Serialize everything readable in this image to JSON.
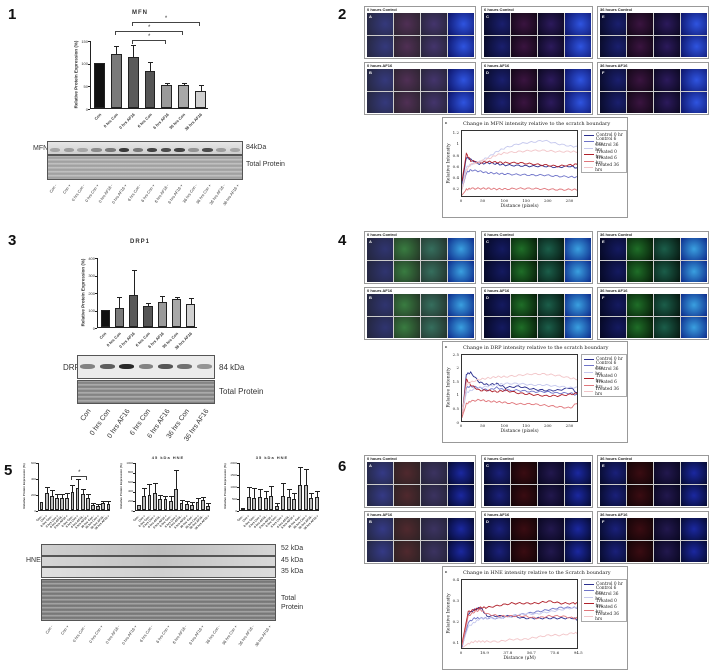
{
  "panels": {
    "p1": {
      "num": "1"
    },
    "p2": {
      "num": "2"
    },
    "p3": {
      "num": "3"
    },
    "p4": {
      "num": "4"
    },
    "p5": {
      "num": "5"
    },
    "p6": {
      "num": "6"
    }
  },
  "mfn_blot": {
    "label": "MFN",
    "kda": "84kDa",
    "total": "Total Protein",
    "lanes": [
      "Con -",
      "Con +",
      "0 hrs Con -",
      "0 hrs Con +",
      "0 hrs AF16 -",
      "0 hrs AF16 +",
      "6 hrs Con -",
      "6 hrs Con +",
      "6 hrs AF16 -",
      "6 hrs AF16 +",
      "36 hrs Con -",
      "36 hrs Con +",
      "36 hrs AF16 -",
      "36 hrs AF16 +"
    ]
  },
  "drp_blot": {
    "label": "DRP",
    "kda": "84 kDa",
    "total": "Total Protein",
    "lanes": [
      "Con",
      "0 hrs Con",
      "0 hrs AF16",
      "6 hrs Con",
      "6 hrs AF16",
      "36 hrs Con",
      "36 hrs AF16"
    ]
  },
  "hne_blot": {
    "label": "HNE",
    "kda": [
      "52 kDa",
      "45 kDa",
      "35 kDa"
    ],
    "total_line1": "Total",
    "total_line2": "Protein",
    "lanes": [
      "Con -",
      "Con +",
      "0 hrs Con -",
      "0 hrs Con +",
      "0 hrs AF16 -",
      "0 hrs AF16 +",
      "6 hrs Con -",
      "6 hrs Con +",
      "6 hrs AF16 -",
      "6 hrs AF16 +",
      "36 hrs Con -",
      "36 hrs Con +",
      "36 hrs AF16 -",
      "36 hrs AF16 +"
    ]
  },
  "image_panels": {
    "p2": [
      "0 hours Control",
      "6 hours Control",
      "36 hours Control",
      "0 hours AF16",
      "6 hours AF16",
      "36 hours AF16"
    ],
    "p4": [
      "0 hours Control",
      "6 hours Control",
      "36 hours Control",
      "0 hours AF16",
      "6 hours AF16",
      "36 hours AF16"
    ],
    "p6": [
      "0 hours Control",
      "6 hours Control",
      "36 hours Control",
      "0 hours AF16",
      "6 hours AF16",
      "36 hours AF16"
    ],
    "letters": [
      "A",
      "C",
      "E",
      "B",
      "D",
      "F"
    ]
  },
  "legend": [
    "Control 0 hr",
    "Control 6 hrs",
    "Control 36 hrs",
    "Treated 0 hrs",
    "Treated 6 hrs",
    "Treated 36 hrs"
  ],
  "legend_colors": [
    "#2b2f8f",
    "#6f74c9",
    "#c6c9ee",
    "#b0202a",
    "#e0777c",
    "#f2c5c8"
  ],
  "chart_data": [
    {
      "type": "bar",
      "title": "MFN",
      "ylabel": "Relative Protein Expression (%)",
      "xlabel": "",
      "ylim": [
        0,
        150
      ],
      "yticks": [
        0,
        50,
        100,
        150
      ],
      "categories": [
        "Con",
        "0 hrs Con",
        "0 hrs AF16",
        "6 hrs Con",
        "6 hrs AF16",
        "36 hrs Con",
        "36 hrs AF16"
      ],
      "values": [
        100,
        120,
        113,
        82,
        50,
        50,
        38
      ],
      "errors": [
        0,
        14,
        23,
        18,
        3,
        4,
        11
      ],
      "colors": [
        "#111111",
        "#7a7a7a",
        "#5a5a5a",
        "#555555",
        "#9a9a9a",
        "#a8a8a8",
        "#d0d0d0"
      ],
      "significance": [
        {
          "from": 2,
          "to": 4,
          "label": "*"
        },
        {
          "from": 1,
          "to": 5,
          "label": "*"
        },
        {
          "from": 2,
          "to": 6,
          "label": "*"
        }
      ]
    },
    {
      "type": "bar",
      "title": "DRP1",
      "ylabel": "Relative Protein Expression (%)",
      "xlabel": "",
      "ylim": [
        0,
        400
      ],
      "yticks": [
        0,
        100,
        200,
        300,
        400
      ],
      "categories": [
        "Con",
        "0 hrs Con",
        "0 hrs AF16",
        "6 hrs Con",
        "6 hrs AF16",
        "36 hrs Con",
        "36 hrs AF16"
      ],
      "values": [
        100,
        110,
        185,
        120,
        142,
        160,
        133
      ],
      "errors": [
        0,
        55,
        135,
        10,
        30,
        3,
        25
      ],
      "colors": [
        "#111111",
        "#7a7a7a",
        "#5a5a5a",
        "#555555",
        "#9a9a9a",
        "#a8a8a8",
        "#d0d0d0"
      ]
    },
    {
      "type": "bar",
      "title": "",
      "ylabel": "Relative Protein Expression (%)",
      "ylim": [
        0,
        600
      ],
      "yticks": [
        0,
        200,
        400,
        600
      ],
      "categories": [
        "Con -",
        "Con +",
        "0 hrs Con -",
        "0 hrs Con +",
        "0 hrs AF16 -",
        "0 hrs AF16 +",
        "6 hrs Con -",
        "6 hrs Con +",
        "6 hrs AF16 -",
        "6 hrs AF16 +",
        "36 hrs Con -",
        "36 hrs Con +",
        "36 hrs AF16 -",
        "36 hrs AF16 +"
      ],
      "values": [
        100,
        210,
        175,
        150,
        150,
        155,
        225,
        270,
        200,
        150,
        60,
        55,
        85,
        80
      ],
      "errors": [
        0,
        60,
        60,
        40,
        40,
        40,
        80,
        100,
        50,
        40,
        10,
        10,
        20,
        15
      ],
      "significance": [
        {
          "from": 6,
          "to": 9,
          "label": "*"
        }
      ]
    },
    {
      "type": "bar",
      "title": "45 kDa HNE",
      "ylabel": "Relative Protein Expression (%)",
      "ylim": [
        0,
        1000
      ],
      "yticks": [
        0,
        200,
        400,
        600,
        800,
        1000
      ],
      "categories": [
        "Con -",
        "Con +",
        "0 hrs Con -",
        "0 hrs Con +",
        "0 hrs AF16 -",
        "0 hrs AF16 +",
        "6 hrs Con -",
        "6 hrs Con +",
        "6 hrs AF16 -",
        "6 hrs AF16 +",
        "36 hrs Con -",
        "36 hrs Con +",
        "36 hrs AF16 -",
        "36 hrs AF16 +"
      ],
      "values": [
        100,
        300,
        320,
        350,
        230,
        220,
        190,
        440,
        150,
        120,
        100,
        160,
        210,
        90
      ],
      "errors": [
        0,
        140,
        210,
        200,
        60,
        60,
        80,
        380,
        40,
        40,
        40,
        60,
        30,
        40
      ]
    },
    {
      "type": "bar",
      "title": "35 kDa HNE",
      "ylabel": "Relative Protein Expression (%)",
      "ylim": [
        0,
        2000
      ],
      "yticks": [
        0,
        500,
        1000,
        1500,
        2000
      ],
      "categories": [
        "Con -",
        "Con +",
        "0 hrs Con -",
        "0 hrs Con +",
        "0 hrs AF16 -",
        "0 hrs AF16 +",
        "6 hrs Con -",
        "6 hrs Con +",
        "6 hrs AF16 -",
        "6 hrs AF16 +",
        "36 hrs Con -",
        "36 hrs Con +",
        "36 hrs AF16 -",
        "36 hrs AF16 +"
      ],
      "values": [
        100,
        560,
        510,
        550,
        500,
        580,
        180,
        590,
        540,
        470,
        1060,
        1060,
        520,
        560
      ],
      "errors": [
        0,
        350,
        350,
        300,
        250,
        380,
        80,
        500,
        280,
        200,
        700,
        600,
        150,
        200
      ]
    },
    {
      "type": "line",
      "title": "Change in MFN intensity relative to the scratch boundary",
      "xlabel": "Distance (pixels)",
      "ylabel": "Relative Intensity",
      "xlim": [
        0,
        270
      ],
      "ylim": [
        0.05,
        1.25
      ],
      "xticks": [
        0,
        50,
        100,
        150,
        200,
        250
      ],
      "yticks": [
        0.2,
        0.4,
        0.6,
        0.8,
        1.0,
        1.2
      ],
      "x": [
        0,
        10,
        20,
        40,
        60,
        80,
        100,
        130,
        160,
        190,
        220,
        250,
        270
      ],
      "series": [
        {
          "name": "Control 0 hr",
          "values": [
            0.3,
            0.78,
            0.74,
            0.66,
            0.68,
            0.66,
            0.64,
            0.63,
            0.62,
            0.62,
            0.6,
            0.62,
            0.58
          ]
        },
        {
          "name": "Control 6 hrs",
          "values": [
            0.2,
            0.5,
            0.55,
            0.53,
            0.5,
            0.49,
            0.48,
            0.47,
            0.46,
            0.46,
            0.44,
            0.43,
            0.42
          ]
        },
        {
          "name": "Control 36 hrs",
          "values": [
            0.25,
            0.6,
            0.65,
            0.7,
            0.78,
            0.88,
            0.95,
            1.02,
            1.05,
            1.08,
            1.02,
            0.98,
            0.96
          ]
        },
        {
          "name": "Treated 0 hrs",
          "values": [
            0.35,
            0.84,
            0.72,
            0.68,
            0.7,
            0.69,
            0.68,
            0.68,
            0.66,
            0.64,
            0.62,
            0.64,
            0.66
          ]
        },
        {
          "name": "Treated 6 hrs",
          "values": [
            0.1,
            0.2,
            0.22,
            0.22,
            0.22,
            0.21,
            0.21,
            0.22,
            0.22,
            0.21,
            0.2,
            0.2,
            0.2
          ]
        },
        {
          "name": "Treated 36 hrs",
          "values": [
            0.2,
            0.55,
            0.65,
            0.7,
            0.75,
            0.82,
            0.86,
            0.88,
            0.9,
            0.9,
            0.88,
            0.88,
            0.88
          ]
        }
      ]
    },
    {
      "type": "line",
      "title": "Change in DRP intensity relative to the scratch boundary",
      "xlabel": "Distance (pixels)",
      "ylabel": "Relative Intensity",
      "xlim": [
        0,
        270
      ],
      "ylim": [
        0,
        2.5
      ],
      "xticks": [
        0,
        50,
        100,
        150,
        200,
        250
      ],
      "yticks": [
        0,
        0.5,
        1,
        1.5,
        2,
        2.5
      ],
      "x": [
        0,
        10,
        20,
        40,
        60,
        80,
        100,
        130,
        160,
        190,
        220,
        250,
        270
      ],
      "series": [
        {
          "name": "Control 0 hr",
          "values": [
            0.2,
            1.8,
            1.85,
            1.5,
            1.4,
            1.45,
            1.3,
            1.35,
            1.25,
            1.2,
            1.2,
            1.3,
            1.05
          ]
        },
        {
          "name": "Control 6 hrs",
          "values": [
            0.3,
            1.3,
            1.35,
            1.3,
            1.2,
            1.3,
            1.2,
            1.2,
            1.15,
            1.15,
            1.1,
            1.1,
            1.0
          ]
        },
        {
          "name": "Control 36 hrs",
          "values": [
            0.3,
            1.1,
            1.2,
            1.3,
            1.35,
            1.4,
            1.45,
            1.45,
            1.4,
            1.4,
            1.35,
            1.3,
            1.3
          ]
        },
        {
          "name": "Treated 0 hrs",
          "values": [
            0.2,
            1.6,
            1.4,
            1.2,
            1.2,
            1.15,
            1.2,
            1.1,
            1.05,
            1.0,
            1.0,
            1.05,
            1.1
          ]
        },
        {
          "name": "Treated 6 hrs",
          "values": [
            0.2,
            0.7,
            0.8,
            0.85,
            0.8,
            0.78,
            0.75,
            0.7,
            0.7,
            0.65,
            0.6,
            0.55,
            0.8
          ]
        },
        {
          "name": "Treated 36 hrs",
          "values": [
            0.3,
            1.4,
            1.5,
            1.6,
            1.65,
            1.7,
            1.7,
            1.75,
            1.8,
            1.8,
            1.75,
            1.65,
            1.6
          ]
        }
      ]
    },
    {
      "type": "line",
      "title": "Change in HNE intensity relative to the Scratch boundary",
      "xlabel": "Distance (μM)",
      "ylabel": "Relative Intensity",
      "xlim": [
        0,
        94.5
      ],
      "ylim": [
        0.07,
        0.4
      ],
      "xticks": [
        0,
        18.9,
        37.8,
        56.7,
        75.6,
        94.5
      ],
      "yticks": [
        0.1,
        0.2,
        0.3,
        0.4
      ],
      "x": [
        0,
        5,
        10,
        15,
        20,
        30,
        40,
        50,
        60,
        70,
        80,
        90,
        94.5
      ],
      "series": [
        {
          "name": "Control 0 hr",
          "values": [
            0.09,
            0.24,
            0.26,
            0.27,
            0.23,
            0.23,
            0.23,
            0.22,
            0.22,
            0.22,
            0.22,
            0.22,
            0.21
          ]
        },
        {
          "name": "Control 6 hrs",
          "values": [
            0.08,
            0.2,
            0.22,
            0.22,
            0.22,
            0.22,
            0.23,
            0.24,
            0.25,
            0.26,
            0.27,
            0.27,
            0.27
          ]
        },
        {
          "name": "Control 36 hrs",
          "values": [
            0.09,
            0.18,
            0.2,
            0.22,
            0.22,
            0.22,
            0.23,
            0.24,
            0.24,
            0.25,
            0.26,
            0.27,
            0.27
          ]
        },
        {
          "name": "Treated 0 hrs",
          "values": [
            0.1,
            0.25,
            0.26,
            0.27,
            0.27,
            0.28,
            0.29,
            0.29,
            0.29,
            0.3,
            0.29,
            0.29,
            0.29
          ]
        },
        {
          "name": "Treated 6 hrs",
          "values": [
            0.09,
            0.23,
            0.25,
            0.26,
            0.24,
            0.23,
            0.23,
            0.23,
            0.22,
            0.23,
            0.23,
            0.22,
            0.22
          ]
        },
        {
          "name": "Treated 36 hrs",
          "values": [
            0.08,
            0.1,
            0.11,
            0.11,
            0.11,
            0.11,
            0.12,
            0.12,
            0.13,
            0.14,
            0.14,
            0.15,
            0.15
          ]
        }
      ]
    }
  ]
}
